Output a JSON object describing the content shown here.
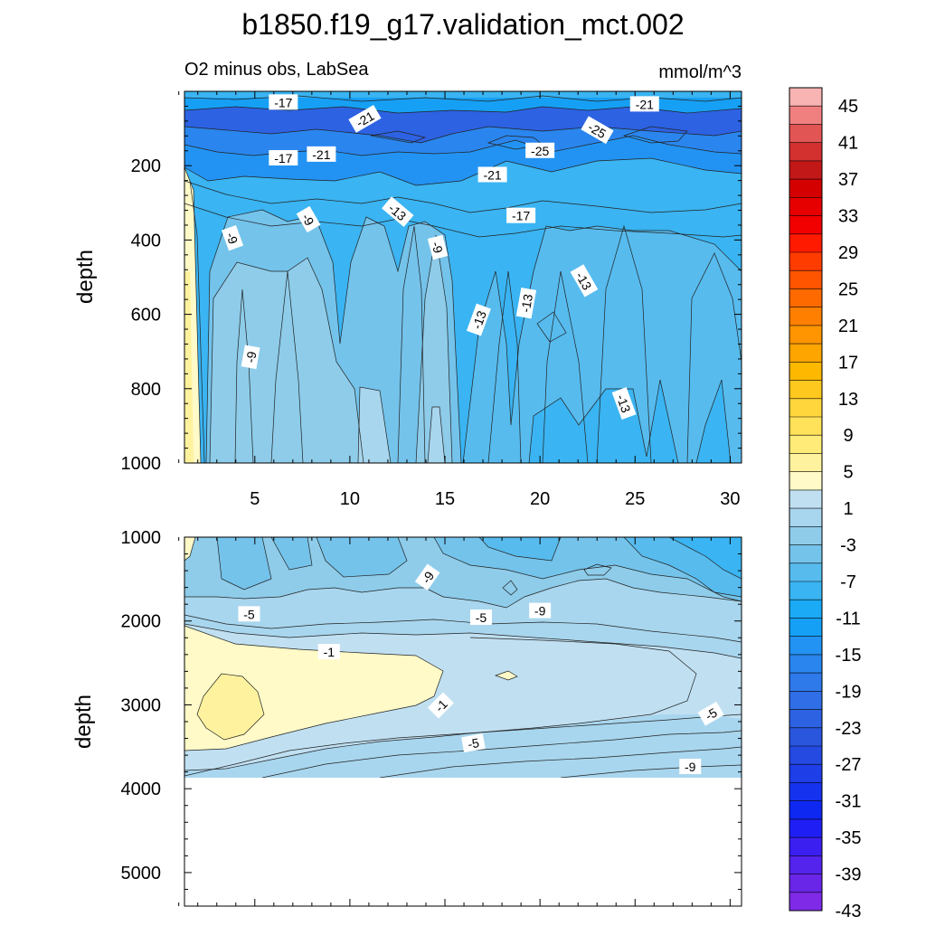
{
  "title": "b1850.f19_g17.validation_mct.002",
  "left_subtitle": "O2 minus obs, LabSea",
  "right_subtitle": "mmol/m^3",
  "chart_data": [
    {
      "type": "contour",
      "panel": "upper",
      "ylabel": "depth",
      "xlim": [
        1.3,
        30.6
      ],
      "ylim": [
        1000,
        0
      ],
      "x_ticks": [
        5,
        10,
        15,
        20,
        25,
        30
      ],
      "x_ticklabels": [
        "5",
        "10",
        "15",
        "20",
        "25",
        "30"
      ],
      "y_ticks": [
        200,
        400,
        600,
        800,
        1000
      ],
      "y_ticklabels": [
        "200",
        "400",
        "600",
        "800",
        "1000"
      ],
      "contour_labels": [
        {
          "text": "-17",
          "x": 6.5,
          "y": 30,
          "angle": 0
        },
        {
          "text": "-21",
          "x": 10.8,
          "y": 75,
          "angle": -30
        },
        {
          "text": "-25",
          "x": 23.0,
          "y": 105,
          "angle": 30
        },
        {
          "text": "-21",
          "x": 25.5,
          "y": 35,
          "angle": 0
        },
        {
          "text": "-17",
          "x": 6.5,
          "y": 180,
          "angle": 0
        },
        {
          "text": "-21",
          "x": 8.5,
          "y": 170,
          "angle": 0
        },
        {
          "text": "-25",
          "x": 20.0,
          "y": 160,
          "angle": 0
        },
        {
          "text": "-21",
          "x": 17.5,
          "y": 225,
          "angle": 0
        },
        {
          "text": "-13",
          "x": 12.5,
          "y": 325,
          "angle": 40
        },
        {
          "text": "-17",
          "x": 19.0,
          "y": 335,
          "angle": 0
        },
        {
          "text": "-9",
          "x": 3.8,
          "y": 395,
          "angle": 70
        },
        {
          "text": "-9",
          "x": 7.8,
          "y": 345,
          "angle": 60
        },
        {
          "text": "-9",
          "x": 14.6,
          "y": 420,
          "angle": 75
        },
        {
          "text": "-13",
          "x": 22.3,
          "y": 510,
          "angle": 60
        },
        {
          "text": "-13",
          "x": 19.3,
          "y": 570,
          "angle": -80
        },
        {
          "text": "-13",
          "x": 16.8,
          "y": 615,
          "angle": -70
        },
        {
          "text": "-9",
          "x": 4.8,
          "y": 715,
          "angle": -80
        },
        {
          "text": "-13",
          "x": 24.4,
          "y": 840,
          "angle": 70
        }
      ]
    },
    {
      "type": "contour",
      "panel": "lower",
      "ylabel": "depth",
      "xlim": [
        1.3,
        30.6
      ],
      "ylim": [
        5400,
        1000
      ],
      "data_bottom_depth": 3900,
      "y_ticks": [
        1000,
        2000,
        3000,
        4000,
        5000
      ],
      "y_ticklabels": [
        "1000",
        "2000",
        "3000",
        "4000",
        "5000"
      ],
      "contour_labels": [
        {
          "text": "-9",
          "x": 14.1,
          "y": 1480,
          "angle": -55
        },
        {
          "text": "-5",
          "x": 4.7,
          "y": 1920,
          "angle": 0
        },
        {
          "text": "-5",
          "x": 16.9,
          "y": 1960,
          "angle": 0
        },
        {
          "text": "-9",
          "x": 20.0,
          "y": 1880,
          "angle": 0
        },
        {
          "text": "-1",
          "x": 8.9,
          "y": 2370,
          "angle": 0
        },
        {
          "text": "-1",
          "x": 14.8,
          "y": 3010,
          "angle": -45
        },
        {
          "text": "-5",
          "x": 29.0,
          "y": 3110,
          "angle": -30
        },
        {
          "text": "-5",
          "x": 16.5,
          "y": 3460,
          "angle": -10
        },
        {
          "text": "-9",
          "x": 27.9,
          "y": 3740,
          "angle": 0
        }
      ]
    }
  ],
  "colorbar": {
    "levels": [
      45,
      41,
      37,
      33,
      29,
      25,
      21,
      17,
      13,
      9,
      5,
      1,
      -3,
      -7,
      -11,
      -15,
      -19,
      -23,
      -27,
      -31,
      -35,
      -39,
      -43
    ],
    "labels": [
      "45",
      "41",
      "37",
      "33",
      "29",
      "25",
      "21",
      "17",
      "13",
      "9",
      "5",
      "1",
      "-3",
      "-7",
      "-11",
      "-15",
      "-19",
      "-23",
      "-27",
      "-31",
      "-35",
      "-39",
      "-43"
    ],
    "colors": [
      "#F8B3B3",
      "#F08080",
      "#E25555",
      "#D33030",
      "#C31818",
      "#D40000",
      "#E60000",
      "#F20000",
      "#FF1A00",
      "#FF3C00",
      "#FF5500",
      "#FF6A00",
      "#FF8000",
      "#FF9500",
      "#FFA500",
      "#FFB800",
      "#FFC81E",
      "#FFD73C",
      "#FFE15A",
      "#FFEB78",
      "#FFF29E",
      "#FFFAC8",
      "#C0E0F2",
      "#A8D6EE",
      "#8ECCEA",
      "#74C3EB",
      "#57BBEE",
      "#3AB4F2",
      "#1BAAF5",
      "#16A0F5",
      "#2293F2",
      "#2A86EE",
      "#2E7AEA",
      "#2F6EE6",
      "#2D62E2",
      "#2A56DE",
      "#254AE2",
      "#1E3EE8",
      "#1533EE",
      "#0E28F2",
      "#1F1FF5",
      "#3A1FF0",
      "#5423EC",
      "#6A26E8",
      "#7E2AE6"
    ]
  }
}
